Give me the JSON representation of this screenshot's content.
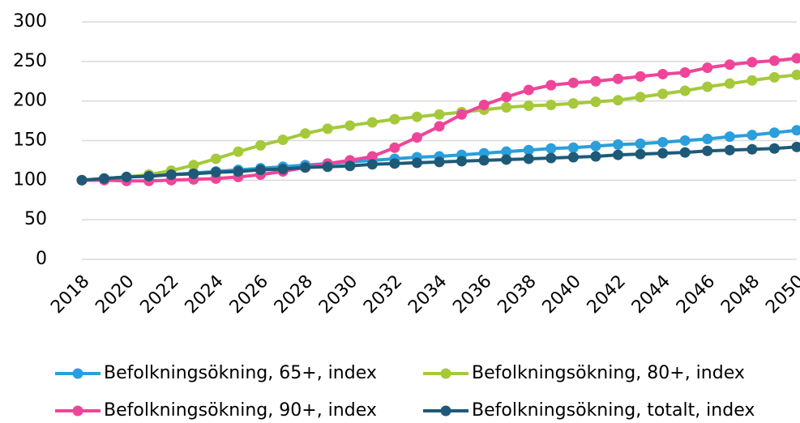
{
  "chart_data": {
    "type": "line",
    "x": [
      2018,
      2019,
      2020,
      2021,
      2022,
      2023,
      2024,
      2025,
      2026,
      2027,
      2028,
      2029,
      2030,
      2031,
      2032,
      2033,
      2034,
      2035,
      2036,
      2037,
      2038,
      2039,
      2040,
      2041,
      2042,
      2043,
      2044,
      2045,
      2046,
      2047,
      2048,
      2049,
      2050
    ],
    "xlim": [
      2018,
      2050
    ],
    "xticks": [
      2018,
      2020,
      2022,
      2024,
      2026,
      2028,
      2030,
      2032,
      2034,
      2036,
      2038,
      2040,
      2042,
      2044,
      2046,
      2048,
      2050
    ],
    "ylim": [
      0,
      300
    ],
    "yticks": [
      0,
      50,
      100,
      150,
      200,
      250,
      300
    ],
    "grid": true,
    "legend": "bottom",
    "series": [
      {
        "name": "Befolkningsökning, 65+, index",
        "color": "#2a9fdb",
        "values": [
          100,
          102,
          104,
          106,
          107,
          109,
          111,
          113,
          115,
          117,
          119,
          121,
          123,
          125,
          127,
          129,
          130,
          132,
          134,
          136,
          138,
          140,
          141,
          143,
          145,
          146,
          148,
          150,
          152,
          155,
          157,
          160,
          163
        ]
      },
      {
        "name": "Befolkningsökning, 80+, index",
        "color": "#a5c93b",
        "values": [
          100,
          102,
          104,
          107,
          112,
          119,
          127,
          136,
          144,
          151,
          159,
          165,
          169,
          173,
          177,
          180,
          183,
          186,
          189,
          192,
          194,
          195,
          197,
          199,
          201,
          205,
          209,
          213,
          218,
          222,
          226,
          230,
          233
        ]
      },
      {
        "name": "Befolkningsökning, 90+, index",
        "color": "#ef4599",
        "values": [
          100,
          100,
          99,
          99,
          100,
          101,
          102,
          104,
          107,
          111,
          116,
          121,
          125,
          130,
          141,
          154,
          168,
          183,
          195,
          205,
          214,
          220,
          223,
          225,
          228,
          231,
          234,
          236,
          242,
          246,
          249,
          251,
          254
        ]
      },
      {
        "name": "Befolkningsökning, totalt, index",
        "color": "#1e5a78",
        "values": [
          100,
          102,
          104,
          105,
          107,
          108,
          110,
          111,
          113,
          114,
          116,
          117,
          118,
          120,
          121,
          122,
          123,
          124,
          125,
          126,
          127,
          128,
          129,
          130,
          132,
          133,
          134,
          135,
          137,
          138,
          139,
          140,
          142
        ]
      }
    ]
  }
}
